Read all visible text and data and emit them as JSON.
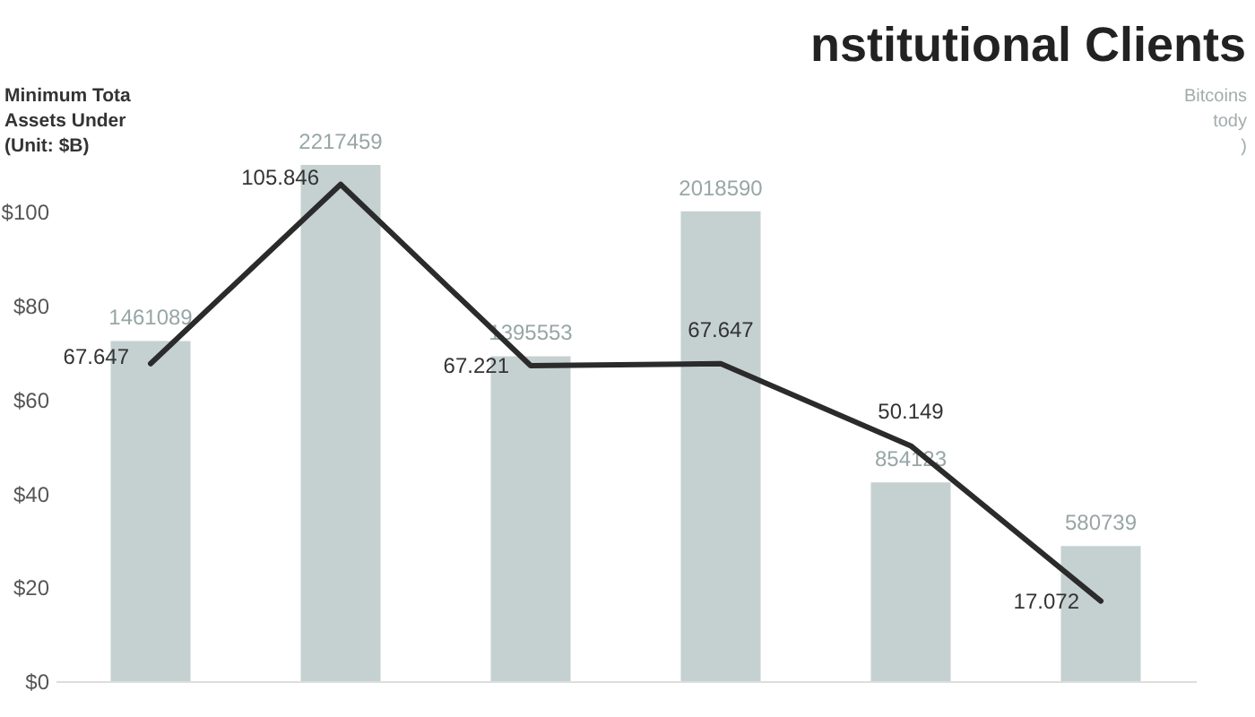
{
  "chart_data": {
    "type": "bar",
    "title": "nstitutional Clients",
    "ylabel": "Minimum Tota\nAssets Under\n(Unit: $B)",
    "y2label": "Bitcoins\ntody\n)",
    "categories": [
      null,
      null,
      null,
      null,
      null,
      null
    ],
    "series": [
      {
        "axis": "y2",
        "color": "#c5d1d1",
        "values": [
          1461089,
          2217459,
          1395553,
          2018590,
          854123,
          580739
        ]
      },
      {
        "type": "line",
        "color": "#2b2b2b",
        "values": [
          67.647,
          105.846,
          67.221,
          67.647,
          50.149,
          17.072
        ]
      }
    ],
    "ylim": [
      0,
      110
    ],
    "yticks": [
      {
        "value": 0,
        "label": "$0"
      },
      {
        "value": 20,
        "label": "$20"
      },
      {
        "value": 40,
        "label": "$40"
      },
      {
        "value": 60,
        "label": "$60"
      },
      {
        "value": 80,
        "label": "$80"
      },
      {
        "value": 100,
        "label": "$100"
      }
    ],
    "data_labels": true,
    "grid": false
  }
}
